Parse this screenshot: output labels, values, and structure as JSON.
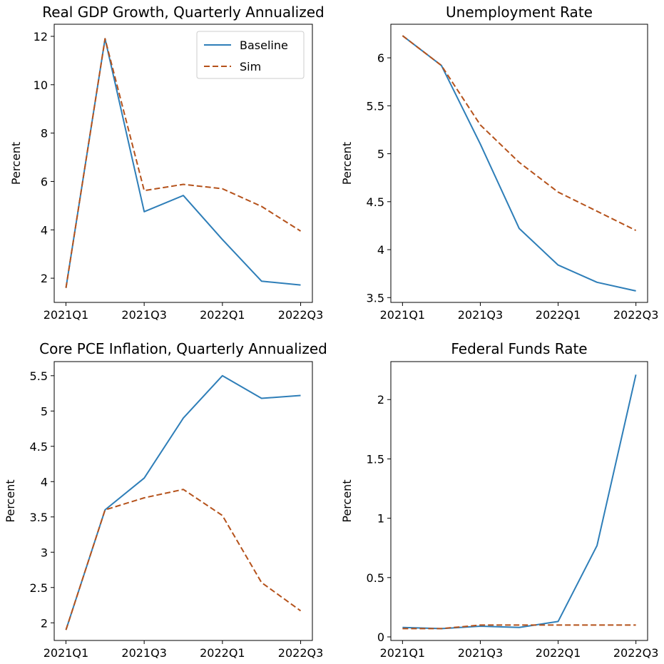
{
  "chart_data": [
    {
      "type": "line",
      "title": "Real GDP Growth, Quarterly Annualized",
      "ylabel": "Percent",
      "xlabel": "",
      "categories": [
        "2021Q1",
        "2021Q2",
        "2021Q3",
        "2021Q4",
        "2022Q1",
        "2022Q2",
        "2022Q3"
      ],
      "xticks": [
        "2021Q1",
        "2021Q3",
        "2022Q1",
        "2022Q3"
      ],
      "yticks": [
        2,
        4,
        6,
        8,
        10,
        12
      ],
      "ylim": [
        1.0,
        12.5
      ],
      "legend": "top-right",
      "series": [
        {
          "name": "Baseline",
          "style": "solid",
          "color": "#2e7eb8",
          "values": [
            1.6,
            11.9,
            4.75,
            5.42,
            3.6,
            1.88,
            1.72
          ]
        },
        {
          "name": "Sim",
          "style": "dashed",
          "color": "#b5521b",
          "values": [
            1.6,
            11.9,
            5.62,
            5.88,
            5.7,
            4.97,
            3.95
          ]
        }
      ]
    },
    {
      "type": "line",
      "title": "Unemployment Rate",
      "ylabel": "Percent",
      "xlabel": "",
      "categories": [
        "2021Q1",
        "2021Q2",
        "2021Q3",
        "2021Q4",
        "2022Q1",
        "2022Q2",
        "2022Q3"
      ],
      "xticks": [
        "2021Q1",
        "2021Q3",
        "2022Q1",
        "2022Q3"
      ],
      "yticks": [
        3.5,
        4.0,
        4.5,
        5.0,
        5.5,
        6.0
      ],
      "ylim": [
        3.45,
        6.35
      ],
      "series": [
        {
          "name": "",
          "style": "solid",
          "color": "#2e7eb8",
          "values": [
            6.23,
            5.92,
            5.1,
            4.22,
            3.84,
            3.66,
            3.57
          ]
        },
        {
          "name": "",
          "style": "dashed",
          "color": "#b5521b",
          "values": [
            6.23,
            5.92,
            5.3,
            4.91,
            4.6,
            4.4,
            4.2
          ]
        }
      ]
    },
    {
      "type": "line",
      "title": "Core PCE Inflation, Quarterly Annualized",
      "ylabel": "Percent",
      "xlabel": "",
      "categories": [
        "2021Q1",
        "2021Q2",
        "2021Q3",
        "2021Q4",
        "2022Q1",
        "2022Q2",
        "2022Q3"
      ],
      "xticks": [
        "2021Q1",
        "2021Q3",
        "2022Q1",
        "2022Q3"
      ],
      "yticks": [
        2.0,
        2.5,
        3.0,
        3.5,
        4.0,
        4.5,
        5.0,
        5.5
      ],
      "ylim": [
        1.75,
        5.7
      ],
      "series": [
        {
          "name": "",
          "style": "solid",
          "color": "#2e7eb8",
          "values": [
            1.9,
            3.6,
            4.05,
            4.9,
            5.5,
            5.18,
            5.22
          ]
        },
        {
          "name": "",
          "style": "dashed",
          "color": "#b5521b",
          "values": [
            1.9,
            3.6,
            3.77,
            3.89,
            3.52,
            2.57,
            2.17
          ]
        }
      ]
    },
    {
      "type": "line",
      "title": "Federal Funds Rate",
      "ylabel": "Percent",
      "xlabel": "",
      "categories": [
        "2021Q1",
        "2021Q2",
        "2021Q3",
        "2021Q4",
        "2022Q1",
        "2022Q2",
        "2022Q3"
      ],
      "xticks": [
        "2021Q1",
        "2021Q3",
        "2022Q1",
        "2022Q3"
      ],
      "yticks": [
        0.0,
        0.5,
        1.0,
        1.5,
        2.0
      ],
      "ylim": [
        -0.03,
        2.32
      ],
      "series": [
        {
          "name": "",
          "style": "solid",
          "color": "#2e7eb8",
          "values": [
            0.08,
            0.07,
            0.09,
            0.08,
            0.13,
            0.77,
            2.21
          ]
        },
        {
          "name": "",
          "style": "dashed",
          "color": "#b5521b",
          "values": [
            0.07,
            0.07,
            0.1,
            0.1,
            0.1,
            0.1,
            0.1
          ]
        }
      ]
    }
  ]
}
